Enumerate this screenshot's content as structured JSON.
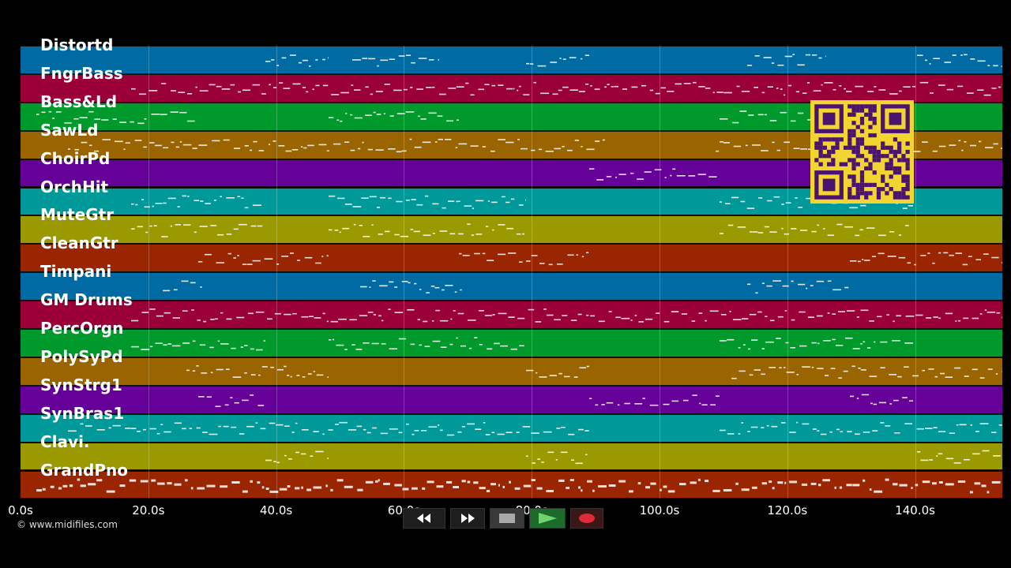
{
  "tracks": [
    {
      "name": "Distortd",
      "color": "#006ba3"
    },
    {
      "name": "FngrBass",
      "color": "#9a0036"
    },
    {
      "name": "Bass&Ld",
      "color": "#00992b"
    },
    {
      "name": "SawLd",
      "color": "#9a6400"
    },
    {
      "name": "ChoirPd",
      "color": "#650099"
    },
    {
      "name": "OrchHit",
      "color": "#00999a"
    },
    {
      "name": "MuteGtr",
      "color": "#9a9a00"
    },
    {
      "name": "CleanGtr",
      "color": "#992600"
    },
    {
      "name": "Timpani",
      "color": "#006ba3"
    },
    {
      "name": "GM Drums",
      "color": "#9a0036"
    },
    {
      "name": "PercOrgn",
      "color": "#00992b"
    },
    {
      "name": "PolySyPd",
      "color": "#9a6400"
    },
    {
      "name": "SynStrg1",
      "color": "#650099"
    },
    {
      "name": "SynBras1",
      "color": "#00999a"
    },
    {
      "name": "Clavi.",
      "color": "#9a9a00"
    },
    {
      "name": "GrandPno",
      "color": "#992600"
    }
  ],
  "timeline": {
    "ticks": [
      "0.0s",
      "20.0s",
      "40.0s",
      "60.0s",
      "80.0s",
      "100.0s",
      "120.0s",
      "140.0s"
    ]
  },
  "copyright": "© www.midifiles.com",
  "transport": {
    "rewind_icon": "rewind-icon",
    "forward_icon": "fast-forward-icon",
    "stop_icon": "stop-icon",
    "play_icon": "play-icon",
    "record_icon": "record-icon"
  },
  "qr_icon": "qr-code-icon"
}
